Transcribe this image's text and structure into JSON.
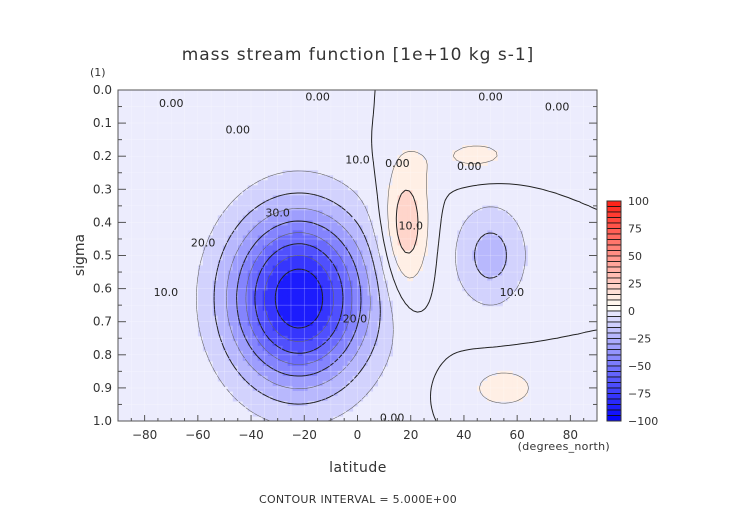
{
  "chart_data": {
    "type": "heatmap",
    "subtype": "filled-contour",
    "title": "mass stream function [1e+10 kg s-1]",
    "xlabel": "latitude",
    "x_units": "(degrees_north)",
    "ylabel": "sigma",
    "y_units": "(1)",
    "footer": "CONTOUR INTERVAL = 5.000E+00",
    "xlim": [
      -90,
      90
    ],
    "ylim": [
      1.0,
      0.0
    ],
    "y_inverted": true,
    "x_ticks": [
      -80,
      -60,
      -40,
      -20,
      0,
      20,
      40,
      60,
      80
    ],
    "x_tick_labels": [
      "−80",
      "−60",
      "−40",
      "−20",
      "0",
      "20",
      "40",
      "60",
      "80"
    ],
    "y_ticks": [
      0.0,
      0.1,
      0.2,
      0.3,
      0.4,
      0.5,
      0.6,
      0.7,
      0.8,
      0.9,
      1.0
    ],
    "y_tick_labels": [
      "0.0",
      "0.1",
      "0.2",
      "0.3",
      "0.4",
      "0.5",
      "0.6",
      "0.7",
      "0.8",
      "0.9",
      "1.0"
    ],
    "contour_interval": 5.0,
    "colorbar": {
      "range": [
        -100,
        100
      ],
      "step": 5,
      "tick_values": [
        100,
        75,
        50,
        25,
        0,
        -25,
        -50,
        -75,
        -100
      ],
      "tick_labels": [
        "100",
        "75",
        "50",
        "25",
        "0",
        "−25",
        "−50",
        "−75",
        "−100"
      ],
      "colormap": "blue-white-red",
      "low_color": "#0000ff",
      "mid_color": "#ffffff",
      "high_color": "#ff0000"
    },
    "contour_labels": [
      {
        "text": "0.00",
        "lat": -70,
        "sigma": 0.04
      },
      {
        "text": "0.00",
        "lat": -45,
        "sigma": 0.12
      },
      {
        "text": "0.00",
        "lat": -15,
        "sigma": 0.02
      },
      {
        "text": "0.00",
        "lat": 50,
        "sigma": 0.02
      },
      {
        "text": "0.00",
        "lat": 75,
        "sigma": 0.05
      },
      {
        "text": "0.00",
        "lat": 15,
        "sigma": 0.22
      },
      {
        "text": "0.00",
        "lat": 42,
        "sigma": 0.23
      },
      {
        "text": "0.00",
        "lat": 13,
        "sigma": 0.99
      },
      {
        "text": "10.0",
        "lat": 0,
        "sigma": 0.21
      },
      {
        "text": "30.0",
        "lat": -30,
        "sigma": 0.37
      },
      {
        "text": "20.0",
        "lat": -58,
        "sigma": 0.46
      },
      {
        "text": "10.0",
        "lat": -72,
        "sigma": 0.61
      },
      {
        "text": "20.0",
        "lat": -1,
        "sigma": 0.69
      },
      {
        "text": "10.0",
        "lat": 20,
        "sigma": 0.41
      },
      {
        "text": "10.0",
        "lat": 58,
        "sigma": 0.61
      }
    ],
    "features": [
      {
        "name": "southern-hemisphere-negative-cell",
        "center_lat": -22,
        "center_sigma": 0.63,
        "min_value": -45
      },
      {
        "name": "tropical-positive-cell",
        "center_lat": 18,
        "center_sigma": 0.42,
        "max_value": 15
      },
      {
        "name": "northern-negative-cell",
        "center_lat": 50,
        "center_sigma": 0.5,
        "min_value": -12
      },
      {
        "name": "northern-lower-positive-region",
        "center_lat": 55,
        "center_sigma": 0.9,
        "max_value": 7
      },
      {
        "name": "upper-northern-positive-region",
        "center_lat": 45,
        "center_sigma": 0.2,
        "max_value": 6
      }
    ],
    "grid": true,
    "legend": "right"
  }
}
